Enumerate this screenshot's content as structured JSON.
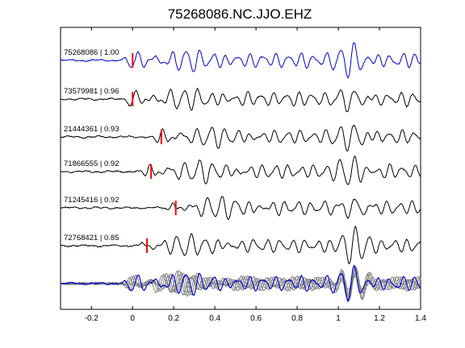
{
  "chart_data": {
    "type": "line",
    "title": "75268086.NC.JJO.EHZ",
    "xlabel": "",
    "ylabel": "",
    "xlim": [
      -0.35,
      1.4
    ],
    "xticks": [
      -0.2,
      0,
      0.2,
      0.4,
      0.6,
      0.8,
      1,
      1.2,
      1.4
    ],
    "xtick_labels": [
      "-0.2",
      "0",
      "0.2",
      "0.4",
      "0.6",
      "0.8",
      "1",
      "1.2",
      "1.4"
    ],
    "grid": false,
    "legend": "none",
    "colors": {
      "master": "#0000cc",
      "trace": "#000000",
      "pick": "#ff0000",
      "stack_gray": "#808080",
      "axes": "#000000"
    },
    "series": [
      {
        "label": "75268086 | 1.00",
        "pick_time": 0.0,
        "amplitude": 1.0,
        "seed": 1
      },
      {
        "label": "73579981 | 0.96",
        "pick_time": 0.0,
        "amplitude": 0.95,
        "seed": 2
      },
      {
        "label": "21444361 | 0.93",
        "pick_time": 0.14,
        "amplitude": 0.9,
        "seed": 3
      },
      {
        "label": "71866555 | 0.92",
        "pick_time": 0.09,
        "amplitude": 0.95,
        "seed": 4
      },
      {
        "label": "71245416 | 0.92",
        "pick_time": 0.21,
        "amplitude": 0.95,
        "seed": 5
      },
      {
        "label": "72768421 | 0.85",
        "pick_time": 0.07,
        "amplitude": 0.9,
        "seed": 6
      }
    ]
  }
}
